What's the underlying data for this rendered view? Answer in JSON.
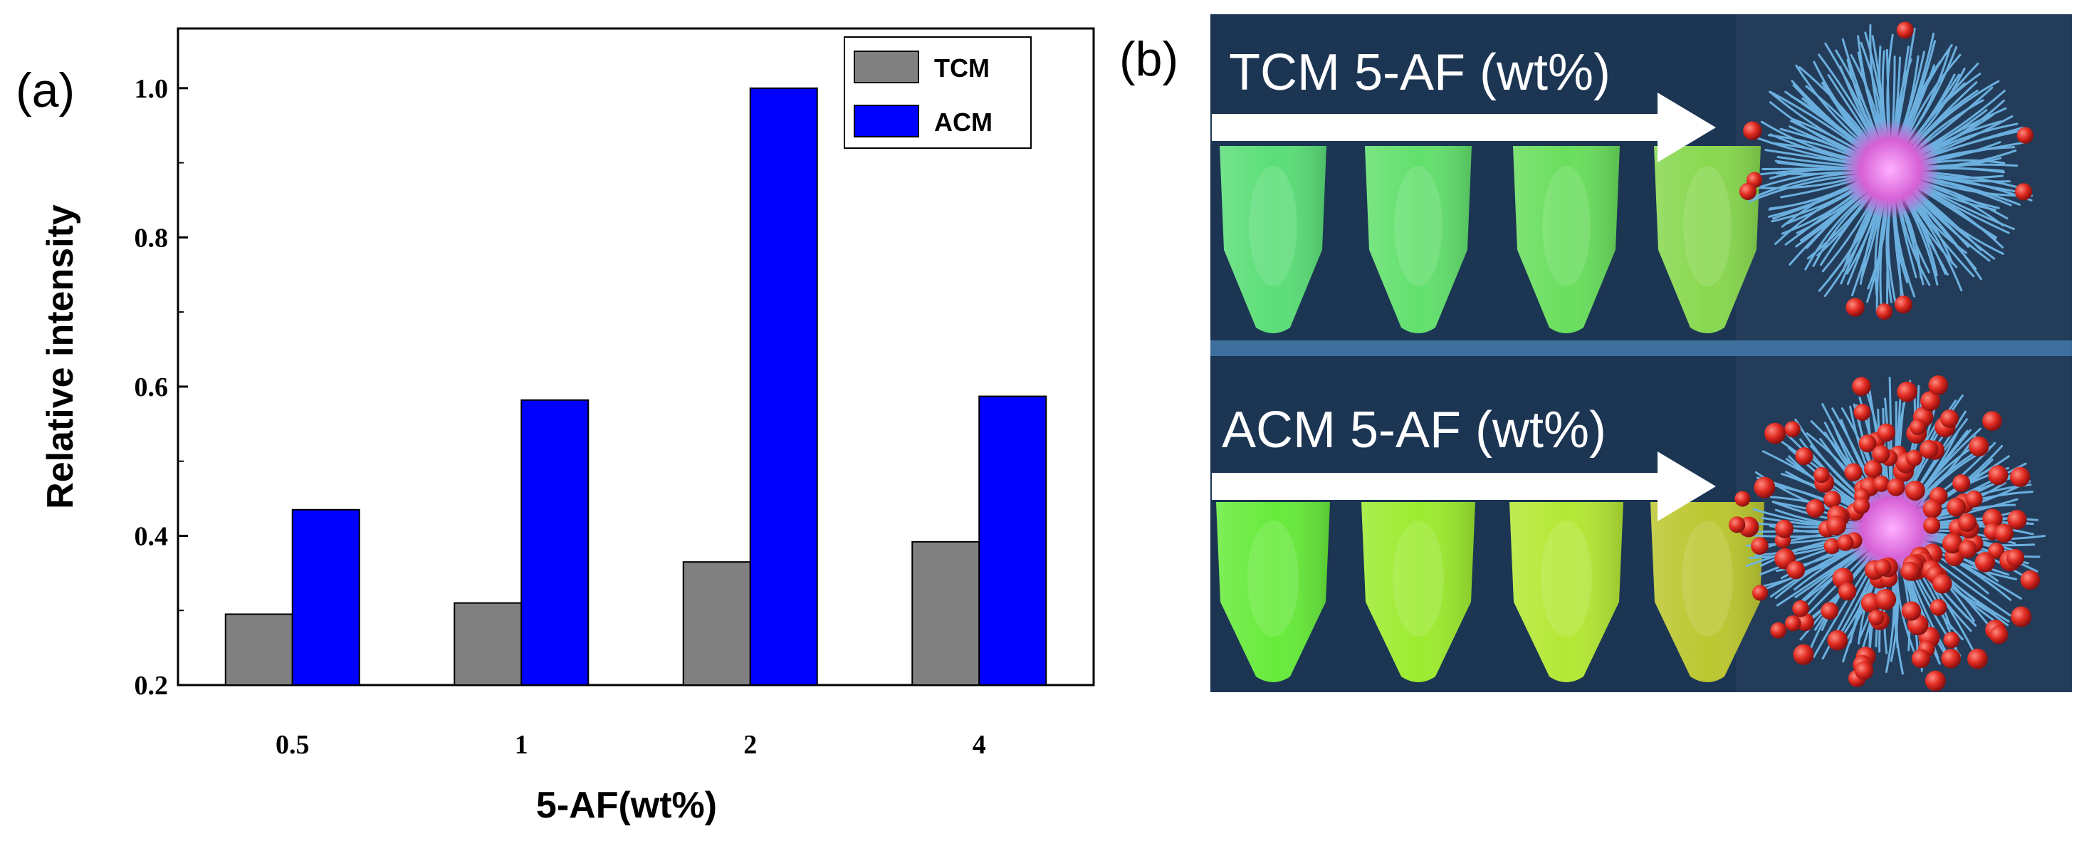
{
  "figure": {
    "panel_a_label": "(a)",
    "panel_b_label": "(b)"
  },
  "chart_data": {
    "type": "bar",
    "title": "",
    "xlabel": "5-AF(wt%)",
    "ylabel": "Relative intensity",
    "categories": [
      "0.5",
      "1",
      "2",
      "4"
    ],
    "ylim": [
      0.2,
      1.08
    ],
    "yticks": [
      "0.2",
      "0.4",
      "0.6",
      "0.8",
      "1.0"
    ],
    "legend_position": "top-right",
    "series": [
      {
        "name": "TCM",
        "color": "#808080",
        "values": [
          0.295,
          0.31,
          0.365,
          0.392
        ]
      },
      {
        "name": "ACM",
        "color": "#0000ff",
        "values": [
          0.435,
          0.582,
          1.0,
          0.587
        ]
      }
    ]
  },
  "photo": {
    "top_label": "TCM 5-AF (wt%)",
    "bottom_label": "ACM 5-AF (wt%)",
    "background_color": "#1b3553",
    "tube_colors_top": [
      "#5fe87a",
      "#66ea6f",
      "#6ee85e",
      "#8ee24f"
    ],
    "tube_colors_bottom": [
      "#6cf53a",
      "#a4f52e",
      "#bdf234",
      "#c5d02e"
    ],
    "fiber_color": "#6fb6e6",
    "core_color": "#e070e0",
    "particle_color": "#e02a20"
  }
}
